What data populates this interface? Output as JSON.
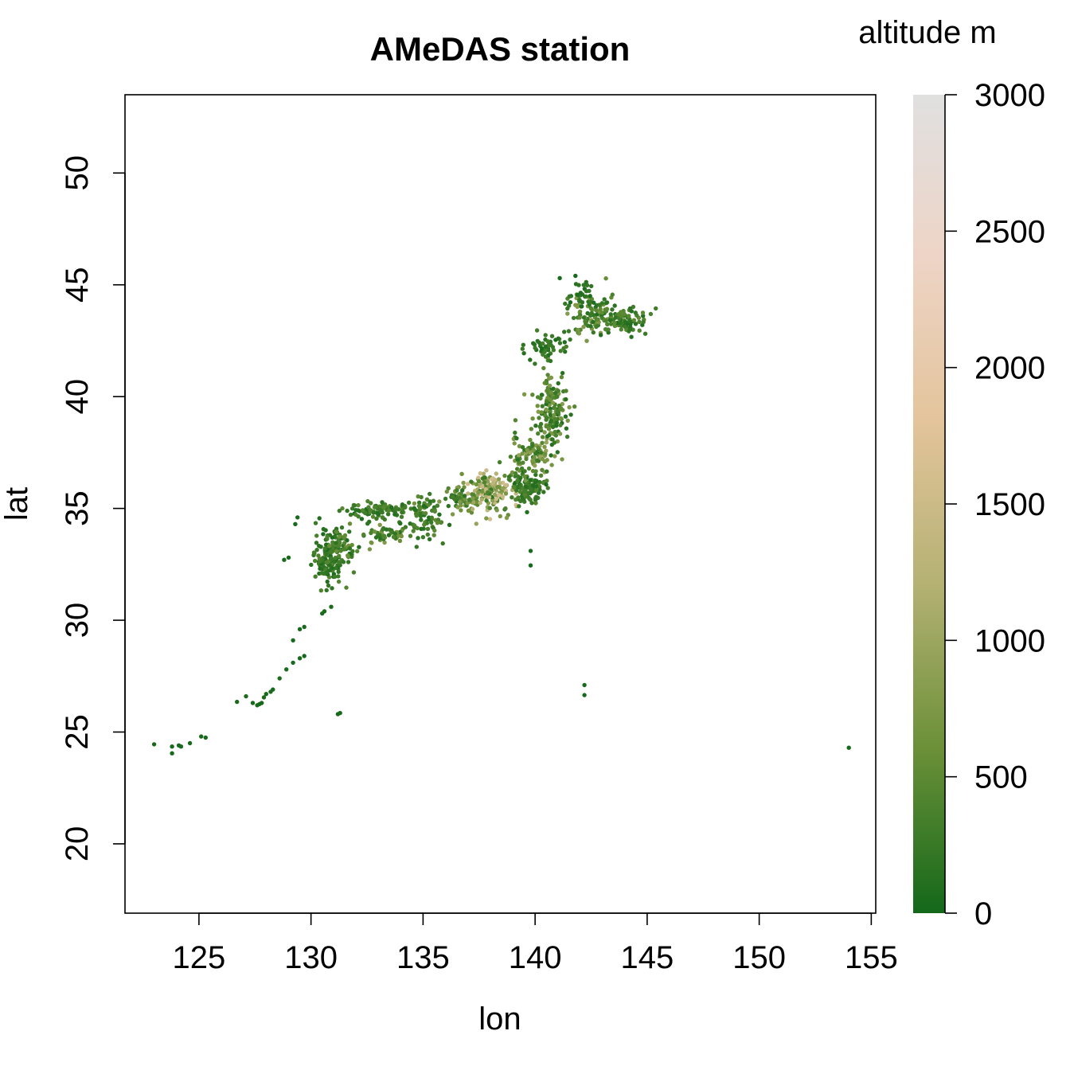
{
  "chart_data": {
    "type": "scatter",
    "title": "AMeDAS station",
    "xlabel": "lon",
    "ylabel": "lat",
    "xlim": [
      121.7,
      155.2
    ],
    "ylim": [
      16.9,
      53.5
    ],
    "x_ticks": [
      125,
      130,
      135,
      140,
      145,
      150,
      155
    ],
    "y_ticks": [
      20,
      25,
      30,
      35,
      40,
      45,
      50
    ],
    "grid": false,
    "colorbar": {
      "title": "altitude m",
      "range": [
        0,
        3000
      ],
      "ticks": [
        0,
        500,
        1000,
        1500,
        2000,
        2500,
        3000
      ],
      "colors": [
        "#14681a",
        "#6b9038",
        "#b4b173",
        "#e3c49b",
        "#eed4c6",
        "#e0e0e0"
      ]
    },
    "points": [
      [
        123.0,
        24.45,
        20
      ],
      [
        123.8,
        24.05,
        20
      ],
      [
        123.8,
        24.35,
        20
      ],
      [
        124.1,
        24.4,
        30
      ],
      [
        124.2,
        24.35,
        30
      ],
      [
        124.6,
        24.5,
        20
      ],
      [
        125.1,
        24.8,
        20
      ],
      [
        125.3,
        24.75,
        20
      ],
      [
        126.7,
        26.35,
        30
      ],
      [
        127.1,
        26.6,
        40
      ],
      [
        127.4,
        26.3,
        20
      ],
      [
        127.6,
        26.2,
        30
      ],
      [
        127.7,
        26.25,
        20
      ],
      [
        127.8,
        26.3,
        20
      ],
      [
        127.9,
        26.55,
        40
      ],
      [
        128.0,
        26.7,
        40
      ],
      [
        128.2,
        26.8,
        30
      ],
      [
        128.3,
        26.9,
        20
      ],
      [
        128.6,
        27.4,
        40
      ],
      [
        128.9,
        27.8,
        30
      ],
      [
        129.2,
        28.1,
        30
      ],
      [
        129.5,
        28.3,
        20
      ],
      [
        129.7,
        28.4,
        20
      ],
      [
        129.2,
        29.1,
        20
      ],
      [
        129.5,
        29.6,
        20
      ],
      [
        129.7,
        29.7,
        20
      ],
      [
        130.5,
        30.3,
        30
      ],
      [
        130.6,
        30.4,
        50
      ],
      [
        130.9,
        30.6,
        40
      ],
      [
        131.3,
        25.85,
        20
      ],
      [
        131.2,
        25.8,
        20
      ],
      [
        128.8,
        32.7,
        30
      ],
      [
        129.0,
        32.8,
        20
      ],
      [
        129.3,
        34.3,
        30
      ],
      [
        129.4,
        34.6,
        30
      ],
      [
        154.0,
        24.3,
        10
      ],
      [
        142.2,
        26.65,
        30
      ],
      [
        142.2,
        27.1,
        30
      ],
      [
        139.8,
        32.45,
        30
      ],
      [
        139.8,
        33.1,
        40
      ],
      [
        141.8,
        45.4,
        20
      ],
      [
        141.1,
        45.3,
        30
      ]
    ],
    "regions": [
      {
        "cx": 130.8,
        "cy": 32.8,
        "rx": 0.7,
        "ry": 1.1,
        "n": 140,
        "alt": 250
      },
      {
        "cx": 131.4,
        "cy": 33.4,
        "rx": 0.6,
        "ry": 0.6,
        "n": 50,
        "alt": 350
      },
      {
        "cx": 132.8,
        "cy": 34.9,
        "rx": 1.3,
        "ry": 0.4,
        "n": 90,
        "alt": 300
      },
      {
        "cx": 133.2,
        "cy": 33.8,
        "rx": 1.0,
        "ry": 0.4,
        "n": 50,
        "alt": 450
      },
      {
        "cx": 135.0,
        "cy": 34.6,
        "rx": 0.9,
        "ry": 0.8,
        "n": 80,
        "alt": 300
      },
      {
        "cx": 136.6,
        "cy": 35.5,
        "rx": 0.9,
        "ry": 0.6,
        "n": 70,
        "alt": 450
      },
      {
        "cx": 138.0,
        "cy": 35.8,
        "rx": 1.0,
        "ry": 0.8,
        "n": 150,
        "alt": 900
      },
      {
        "cx": 139.7,
        "cy": 35.9,
        "rx": 0.7,
        "ry": 0.6,
        "n": 110,
        "alt": 250
      },
      {
        "cx": 139.8,
        "cy": 37.4,
        "rx": 0.8,
        "ry": 0.8,
        "n": 100,
        "alt": 550
      },
      {
        "cx": 140.8,
        "cy": 39.3,
        "rx": 0.7,
        "ry": 1.6,
        "n": 150,
        "alt": 450
      },
      {
        "cx": 140.6,
        "cy": 42.3,
        "rx": 0.8,
        "ry": 0.5,
        "n": 50,
        "alt": 200
      },
      {
        "cx": 142.5,
        "cy": 43.6,
        "rx": 0.9,
        "ry": 0.9,
        "n": 90,
        "alt": 450
      },
      {
        "cx": 144.0,
        "cy": 43.4,
        "rx": 1.0,
        "ry": 0.5,
        "n": 80,
        "alt": 300
      },
      {
        "cx": 142.0,
        "cy": 44.6,
        "rx": 0.4,
        "ry": 0.7,
        "n": 30,
        "alt": 150
      }
    ]
  }
}
